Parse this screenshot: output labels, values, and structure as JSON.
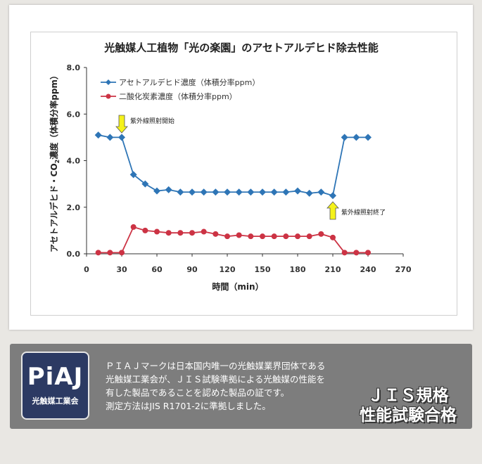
{
  "chart_data": {
    "type": "line",
    "title": "光触媒人工植物「光の楽園」のアセトアルデヒド除去性能",
    "xlabel": "時間（min）",
    "ylabel_parts": [
      "アセトアルデヒド・CO",
      "2",
      "濃度（体積分率ppm）"
    ],
    "xlim": [
      0,
      270
    ],
    "ylim": [
      0,
      8
    ],
    "xticks": [
      "0",
      "30",
      "60",
      "90",
      "120",
      "150",
      "180",
      "210",
      "240",
      "270"
    ],
    "yticks": [
      "0.0",
      "2.0",
      "4.0",
      "6.0",
      "8.0"
    ],
    "grid": false,
    "legend_position": "top-left",
    "series": [
      {
        "name": "アセトアルデヒド濃度（体積分率ppm）",
        "color": "#2e75b6",
        "marker": "diamond",
        "x": [
          10,
          20,
          30,
          40,
          50,
          60,
          70,
          80,
          90,
          100,
          110,
          120,
          130,
          140,
          150,
          160,
          170,
          180,
          190,
          200,
          210,
          220,
          230,
          240
        ],
        "y": [
          5.1,
          5.0,
          5.0,
          3.4,
          3.0,
          2.7,
          2.75,
          2.65,
          2.65,
          2.65,
          2.65,
          2.65,
          2.65,
          2.65,
          2.65,
          2.65,
          2.65,
          2.7,
          2.6,
          2.65,
          2.5,
          5.0,
          5.0,
          5.0
        ]
      },
      {
        "name": "二酸化炭素濃度（体積分率ppm）",
        "color": "#cc3344",
        "marker": "circle",
        "x": [
          10,
          20,
          30,
          40,
          50,
          60,
          70,
          80,
          90,
          100,
          110,
          120,
          130,
          140,
          150,
          160,
          170,
          180,
          190,
          200,
          210,
          220,
          230,
          240
        ],
        "y": [
          0.05,
          0.05,
          0.05,
          1.15,
          1.0,
          0.95,
          0.9,
          0.9,
          0.9,
          0.95,
          0.85,
          0.75,
          0.8,
          0.75,
          0.75,
          0.75,
          0.75,
          0.75,
          0.75,
          0.85,
          0.7,
          0.05,
          0.05,
          0.05
        ]
      }
    ],
    "annotations": [
      {
        "text": "紫外線照射開始",
        "x": 30,
        "arrow": "down"
      },
      {
        "text": "紫外線照射終了",
        "x": 210,
        "arrow": "up"
      }
    ]
  },
  "info": {
    "logo_text": "PiAJ",
    "logo_sub": "光触媒工業会",
    "lines": [
      "ＰＩＡＪマークは日本国内唯一の光触媒業界団体である",
      "光触媒工業会が、ＪＩＳ試験準拠による光触媒の性能を",
      "有した製品であることを認めた製品の証です。",
      "測定方法はJIS R1701-2に準拠しました。"
    ],
    "stamp_line1": "ＪＩＳ規格",
    "stamp_line2": "性能試験合格"
  }
}
